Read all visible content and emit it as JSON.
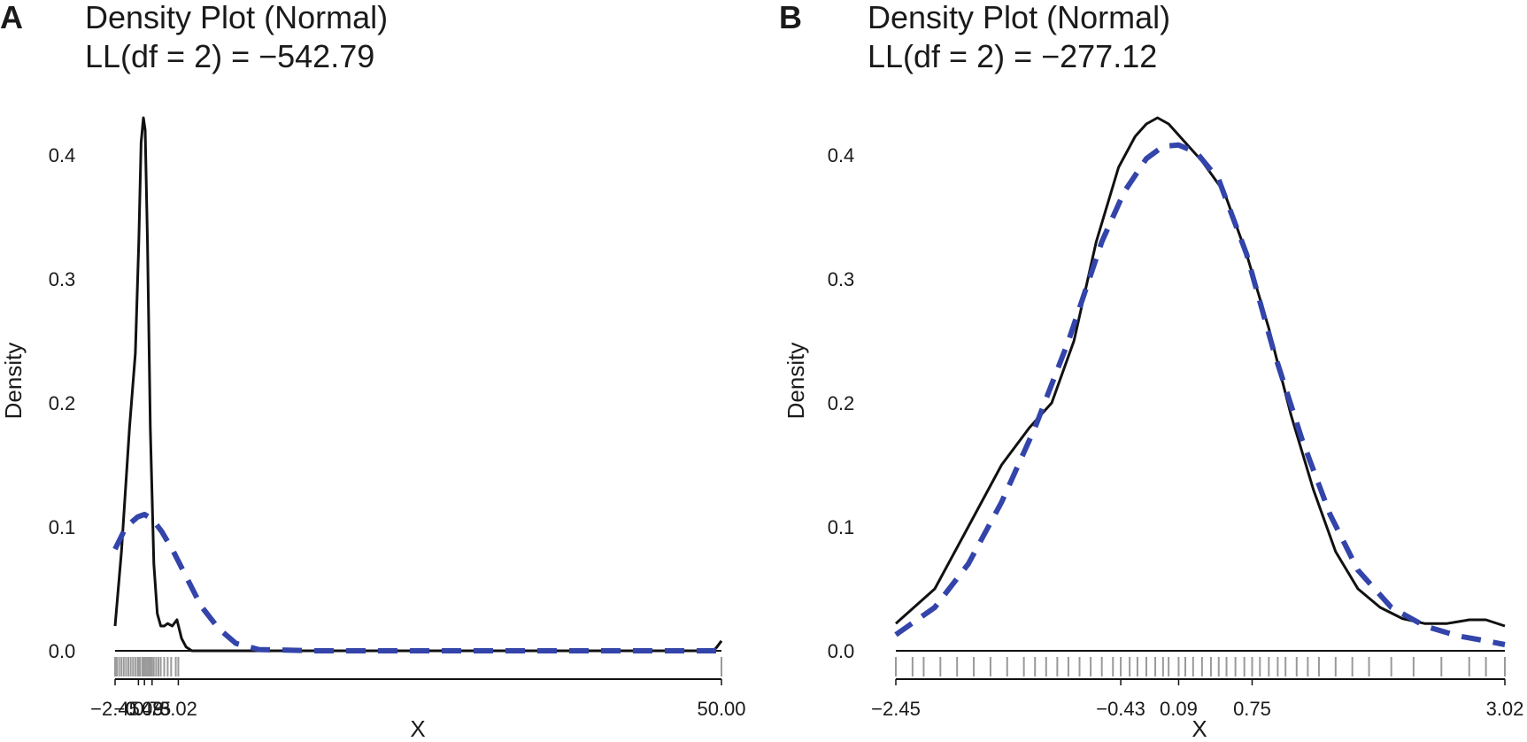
{
  "panels": [
    {
      "letter": "A",
      "title_line1": "Density Plot (Normal)",
      "title_line2": "LL(df = 2) = −542.79",
      "xlabel": "X",
      "ylabel": "Density",
      "yticks": [
        "0.0",
        "0.1",
        "0.2",
        "0.3",
        "0.4"
      ],
      "xticks": [
        "−2.45",
        "−0.43",
        "0.09",
        "0.75",
        "3.02",
        "50.00"
      ]
    },
    {
      "letter": "B",
      "title_line1": "Density Plot (Normal)",
      "title_line2": "LL(df = 2) = −277.12",
      "xlabel": "X",
      "ylabel": "Density",
      "yticks": [
        "0.0",
        "0.1",
        "0.2",
        "0.3",
        "0.4"
      ],
      "xticks": [
        "−2.45",
        "−0.43",
        "0.09",
        "0.75",
        "3.02"
      ]
    }
  ],
  "colors": {
    "kde": "#111111",
    "normal_fit": "#3344aa",
    "rug": "#9a9a9a"
  },
  "chart_data": [
    {
      "type": "line",
      "xlim": [
        -2.45,
        50.0
      ],
      "ylim": [
        0,
        0.43
      ],
      "xtick_values": [
        -2.45,
        -0.43,
        0.09,
        0.75,
        3.02,
        50.0
      ],
      "ytick_values": [
        0,
        0.1,
        0.2,
        0.3,
        0.4
      ],
      "series": [
        {
          "style": "solid",
          "x": [
            -2.45,
            -1.9,
            -1.2,
            -0.7,
            -0.4,
            -0.2,
            0.0,
            0.15,
            0.35,
            0.6,
            0.9,
            1.2,
            1.5,
            1.8,
            2.1,
            2.5,
            2.9,
            3.3,
            3.7,
            4.2,
            5,
            10,
            20,
            30,
            40,
            49.3,
            49.6,
            50.0
          ],
          "y": [
            0.02,
            0.08,
            0.18,
            0.24,
            0.33,
            0.41,
            0.43,
            0.42,
            0.33,
            0.18,
            0.07,
            0.03,
            0.02,
            0.02,
            0.022,
            0.02,
            0.025,
            0.01,
            0.003,
            0.0,
            0.0,
            0.0,
            0.0,
            0.0,
            0.0,
            0.0,
            0.003,
            0.008
          ]
        },
        {
          "style": "dashed",
          "x": [
            -2.45,
            -1.5,
            -0.5,
            0.09,
            0.8,
            1.6,
            2.6,
            3.8,
            5.0,
            6.5,
            8.0,
            10.0,
            15,
            20,
            30,
            40,
            50.0
          ],
          "y": [
            0.082,
            0.1,
            0.108,
            0.11,
            0.106,
            0.096,
            0.08,
            0.058,
            0.036,
            0.018,
            0.006,
            0.001,
            0.0,
            0.0,
            0.0,
            0.0,
            0.0
          ]
        }
      ],
      "rug_x": [
        -2.45,
        -2.3,
        -2.1,
        -1.9,
        -1.7,
        -1.5,
        -1.3,
        -1.1,
        -0.9,
        -0.7,
        -0.5,
        -0.43,
        -0.3,
        -0.1,
        0.0,
        0.09,
        0.2,
        0.35,
        0.5,
        0.65,
        0.75,
        0.9,
        1.1,
        1.3,
        1.5,
        1.8,
        2.1,
        2.4,
        2.8,
        3.02,
        50.0
      ]
    },
    {
      "type": "line",
      "xlim": [
        -2.45,
        3.02
      ],
      "ylim": [
        0,
        0.43
      ],
      "xtick_values": [
        -2.45,
        -0.43,
        0.09,
        0.75,
        3.02
      ],
      "ytick_values": [
        0,
        0.1,
        0.2,
        0.3,
        0.4
      ],
      "series": [
        {
          "style": "solid",
          "x": [
            -2.45,
            -2.1,
            -1.8,
            -1.5,
            -1.25,
            -1.05,
            -0.85,
            -0.65,
            -0.45,
            -0.3,
            -0.2,
            -0.1,
            0.0,
            0.15,
            0.3,
            0.5,
            0.7,
            0.9,
            1.1,
            1.3,
            1.5,
            1.7,
            1.9,
            2.1,
            2.3,
            2.5,
            2.7,
            2.85,
            3.02
          ],
          "y": [
            0.022,
            0.05,
            0.1,
            0.15,
            0.18,
            0.2,
            0.25,
            0.33,
            0.39,
            0.415,
            0.425,
            0.43,
            0.425,
            0.41,
            0.395,
            0.37,
            0.32,
            0.26,
            0.19,
            0.13,
            0.08,
            0.05,
            0.035,
            0.026,
            0.022,
            0.022,
            0.025,
            0.025,
            0.02
          ]
        },
        {
          "style": "dashed",
          "x": [
            -2.45,
            -2.1,
            -1.8,
            -1.5,
            -1.2,
            -0.9,
            -0.6,
            -0.4,
            -0.2,
            -0.05,
            0.09,
            0.25,
            0.45,
            0.7,
            0.95,
            1.2,
            1.45,
            1.7,
            2.0,
            2.3,
            2.6,
            2.85,
            3.02
          ],
          "y": [
            0.013,
            0.035,
            0.07,
            0.12,
            0.18,
            0.25,
            0.33,
            0.37,
            0.397,
            0.407,
            0.408,
            0.402,
            0.38,
            0.32,
            0.24,
            0.17,
            0.11,
            0.065,
            0.035,
            0.02,
            0.012,
            0.008,
            0.005
          ]
        }
      ],
      "rug_x": [
        -2.45,
        -2.3,
        -2.2,
        -2.05,
        -1.9,
        -1.75,
        -1.6,
        -1.45,
        -1.3,
        -1.2,
        -1.1,
        -1.0,
        -0.9,
        -0.8,
        -0.7,
        -0.6,
        -0.5,
        -0.43,
        -0.35,
        -0.28,
        -0.2,
        -0.12,
        -0.05,
        0.0,
        0.09,
        0.15,
        0.22,
        0.3,
        0.38,
        0.45,
        0.52,
        0.6,
        0.68,
        0.75,
        0.82,
        0.9,
        0.98,
        1.05,
        1.15,
        1.25,
        1.35,
        1.5,
        1.65,
        1.8,
        2.0,
        2.2,
        2.45,
        2.7,
        2.85,
        3.02
      ]
    }
  ]
}
